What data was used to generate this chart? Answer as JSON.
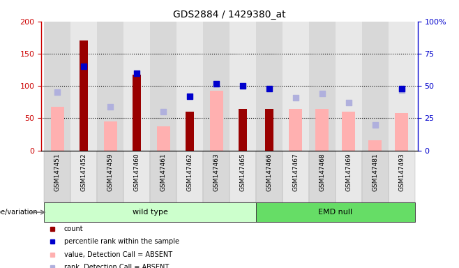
{
  "title": "GDS2884 / 1429380_at",
  "samples": [
    "GSM147451",
    "GSM147452",
    "GSM147459",
    "GSM147460",
    "GSM147461",
    "GSM147462",
    "GSM147463",
    "GSM147465",
    "GSM147466",
    "GSM147467",
    "GSM147468",
    "GSM147469",
    "GSM147481",
    "GSM147493"
  ],
  "count": [
    null,
    170,
    null,
    118,
    null,
    60,
    null,
    65,
    65,
    null,
    null,
    null,
    null,
    null
  ],
  "percentile_rank": [
    null,
    65,
    null,
    60,
    null,
    42,
    52,
    50,
    48,
    null,
    null,
    null,
    null,
    48
  ],
  "value_absent": [
    68,
    null,
    45,
    null,
    38,
    null,
    93,
    null,
    null,
    65,
    65,
    60,
    16,
    58
  ],
  "rank_absent": [
    45,
    null,
    34,
    null,
    30,
    null,
    null,
    null,
    null,
    41,
    44,
    37,
    20,
    47
  ],
  "wild_type_count": 8,
  "emd_null_count": 6,
  "ylim_left": [
    0,
    200
  ],
  "ylim_right": [
    0,
    100
  ],
  "yticks_left": [
    0,
    50,
    100,
    150,
    200
  ],
  "yticks_right": [
    0,
    25,
    50,
    75,
    100
  ],
  "ytick_labels_right": [
    "0",
    "25",
    "50",
    "75",
    "100%"
  ],
  "color_count": "#990000",
  "color_percentile": "#0000cc",
  "color_value_absent": "#ffb0b0",
  "color_rank_absent": "#b0b0dd",
  "color_wildtype_bg": "#ccffcc",
  "color_emdnull_bg": "#66dd66",
  "color_axis_left": "#cc0000",
  "color_axis_right": "#0000cc",
  "dot_size": 35,
  "group_wildtype": "wild type",
  "group_emdnull": "EMD null"
}
